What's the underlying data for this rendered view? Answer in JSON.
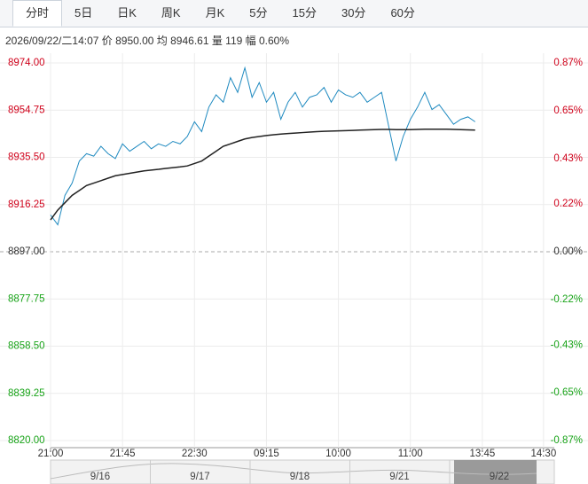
{
  "tabs": [
    "分时",
    "5日",
    "日K",
    "周K",
    "月K",
    "5分",
    "15分",
    "30分",
    "60分"
  ],
  "info": "2026/09/22/二14:07 价 8950.00 均 8946.61 量 119 幅 0.60%",
  "chart_data": {
    "type": "line",
    "x": [
      0,
      2,
      4,
      6,
      8,
      10,
      12,
      14,
      16,
      18,
      20,
      22,
      24,
      26,
      28,
      30,
      32,
      34,
      36,
      38,
      40,
      42,
      44,
      46,
      48,
      50,
      52,
      54,
      56,
      58,
      60,
      62,
      64,
      66,
      68,
      70,
      72,
      74,
      76,
      78,
      80,
      82,
      84,
      86,
      88,
      90,
      92,
      94,
      96,
      98,
      100,
      102,
      104,
      106,
      108,
      110,
      112,
      114,
      116,
      118
    ],
    "series": [
      {
        "color": "#1f8ac0",
        "values": [
          8912,
          8908,
          8920,
          8925,
          8934,
          8937,
          8936,
          8940,
          8937,
          8935,
          8941,
          8938,
          8940,
          8942,
          8939,
          8941,
          8940,
          8942,
          8941,
          8944,
          8950,
          8946,
          8956,
          8961,
          8958,
          8968,
          8962,
          8972,
          8960,
          8966,
          8958,
          8962,
          8951,
          8958,
          8962,
          8956,
          8960,
          8961,
          8964,
          8958,
          8963,
          8961,
          8960,
          8962,
          8958,
          8960,
          8962,
          8948,
          8934,
          8944,
          8951,
          8956,
          8962,
          8955,
          8957,
          8953,
          8949,
          8951,
          8952,
          8950
        ]
      },
      {
        "color": "#222222",
        "values": [
          8910,
          8914,
          8917,
          8920,
          8922,
          8924,
          8925,
          8926,
          8927,
          8928,
          8928.5,
          8929,
          8929.5,
          8930,
          8930.3,
          8930.6,
          8931,
          8931.3,
          8931.6,
          8932,
          8933,
          8934,
          8936,
          8938,
          8940,
          8941,
          8942,
          8943,
          8943.6,
          8944,
          8944.4,
          8944.7,
          8945,
          8945.2,
          8945.4,
          8945.6,
          8945.8,
          8946,
          8946.1,
          8946.2,
          8946.3,
          8946.4,
          8946.5,
          8946.6,
          8946.7,
          8946.8,
          8946.9,
          8946.9,
          8946.8,
          8946.8,
          8946.8,
          8946.9,
          8947,
          8947,
          8947,
          8947,
          8946.9,
          8946.8,
          8946.7,
          8946.6
        ]
      }
    ],
    "prev_close": 8897,
    "ylim": [
      8820,
      8974
    ],
    "yticks": [
      {
        "value": 8974,
        "label": "8974.00"
      },
      {
        "value": 8954.75,
        "label": "8954.75"
      },
      {
        "value": 8935.5,
        "label": "8935.50"
      },
      {
        "value": 8916.25,
        "label": "8916.25"
      },
      {
        "value": 8897,
        "label": "8897.00"
      },
      {
        "value": 8877.75,
        "label": "8877.75"
      },
      {
        "value": 8858.5,
        "label": "8858.50"
      },
      {
        "value": 8839.25,
        "label": "8839.25"
      },
      {
        "value": 8820,
        "label": "8820.00"
      }
    ],
    "y2lim": [
      -0.87,
      0.87
    ],
    "y2ticks": [
      {
        "value": 0.87,
        "label": "0.87%"
      },
      {
        "value": 0.65,
        "label": "0.65%"
      },
      {
        "value": 0.43,
        "label": "0.43%"
      },
      {
        "value": 0.22,
        "label": "0.22%"
      },
      {
        "value": 0,
        "label": "0.00%"
      },
      {
        "value": -0.22,
        "label": "-0.22%"
      },
      {
        "value": -0.43,
        "label": "-0.43%"
      },
      {
        "value": -0.65,
        "label": "-0.65%"
      },
      {
        "value": -0.87,
        "label": "-0.87%"
      }
    ],
    "xlim": [
      0,
      140
    ],
    "xticks": [
      {
        "value": 0,
        "label": "21:00"
      },
      {
        "value": 20,
        "label": "21:45"
      },
      {
        "value": 40,
        "label": "22:30"
      },
      {
        "value": 60,
        "label": "09:15"
      },
      {
        "value": 80,
        "label": "10:00"
      },
      {
        "value": 100,
        "label": "11:00"
      },
      {
        "value": 120,
        "label": "13:45"
      },
      {
        "value": 137,
        "label": "14:30"
      }
    ],
    "navigator_dates": [
      "9/16",
      "9/17",
      "9/18",
      "9/21",
      "9/22"
    ]
  }
}
